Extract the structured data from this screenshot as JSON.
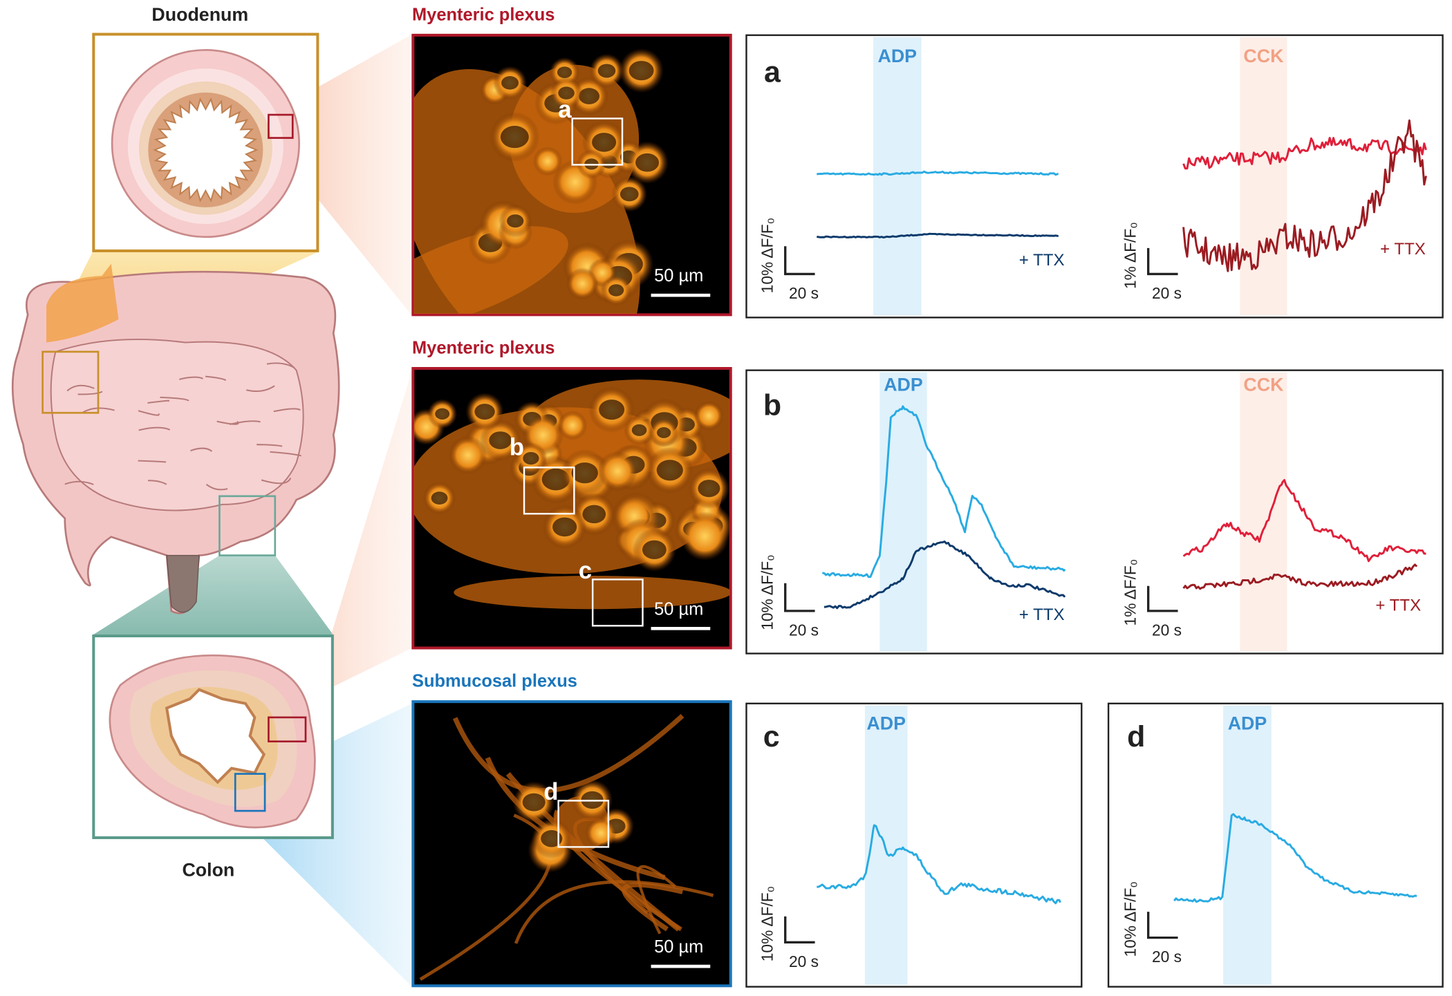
{
  "anatomy": {
    "duodenum": "Duodenum",
    "colon": "Colon"
  },
  "images": [
    {
      "title": "Myenteric plexus",
      "scale_bar": "50 µm",
      "rois": [
        "a"
      ]
    },
    {
      "title": "Myenteric plexus",
      "scale_bar": "50 µm",
      "rois": [
        "b",
        "c"
      ]
    },
    {
      "title": "Submucosal plexus",
      "scale_bar": "50 µm",
      "rois": [
        "d"
      ]
    }
  ],
  "panels": [
    {
      "letter": "a",
      "traces": [
        {
          "stimulus": "ADP",
          "scale_y": "10% ΔF/F₀",
          "scale_x": "20 s",
          "treatment": "+ TTX"
        },
        {
          "stimulus": "CCK",
          "scale_y": "1% ΔF/F₀",
          "scale_x": "20 s",
          "treatment": "+ TTX"
        }
      ]
    },
    {
      "letter": "b",
      "traces": [
        {
          "stimulus": "ADP",
          "scale_y": "10% ΔF/F₀",
          "scale_x": "20 s",
          "treatment": "+ TTX"
        },
        {
          "stimulus": "CCK",
          "scale_y": "1% ΔF/F₀",
          "scale_x": "20 s",
          "treatment": "+ TTX"
        }
      ]
    },
    {
      "letter": "c",
      "traces": [
        {
          "stimulus": "ADP",
          "scale_y": "10% ΔF/F₀",
          "scale_x": "20 s"
        }
      ]
    },
    {
      "letter": "d",
      "traces": [
        {
          "stimulus": "ADP",
          "scale_y": "10% ΔF/F₀",
          "scale_x": "20 s"
        }
      ]
    }
  ]
}
